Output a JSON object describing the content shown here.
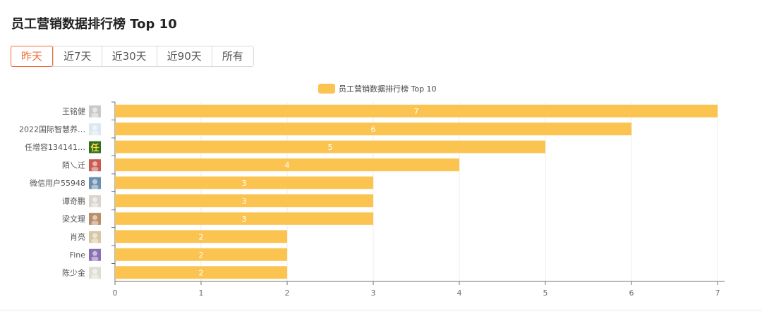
{
  "page": {
    "title": "员工营销数据排行榜 Top 10"
  },
  "filters": {
    "tabs": [
      {
        "label": "昨天",
        "active": true
      },
      {
        "label": "近7天",
        "active": false
      },
      {
        "label": "近30天",
        "active": false
      },
      {
        "label": "近90天",
        "active": false
      },
      {
        "label": "所有",
        "active": false
      }
    ]
  },
  "colors": {
    "bar": "#fbc451",
    "accent": "#f26b3a"
  },
  "chart_data": {
    "type": "bar",
    "orientation": "horizontal",
    "legend": {
      "label": "员工营销数据排行榜 Top 10",
      "position": "top-center"
    },
    "categories": [
      "王铭健",
      "2022国际智慧养…",
      "任增容134141…",
      "陌乀迁",
      "微信用户55948",
      "谭奇鹏",
      "梁文理",
      "肖亮",
      "Fine",
      "陈少金"
    ],
    "avatars": [
      "avatar-photo",
      "avatar-image",
      "avatar-ren-character",
      "avatar-photo",
      "avatar-landscape",
      "avatar-photo",
      "avatar-photo",
      "avatar-photo",
      "avatar-photo",
      "avatar-photo"
    ],
    "values": [
      7,
      6,
      5,
      4,
      3,
      3,
      3,
      2,
      2,
      2
    ],
    "xlim": [
      0,
      7
    ],
    "xticks": [
      0,
      1,
      2,
      3,
      4,
      5,
      6,
      7
    ],
    "grid": true,
    "data_labels": true
  }
}
